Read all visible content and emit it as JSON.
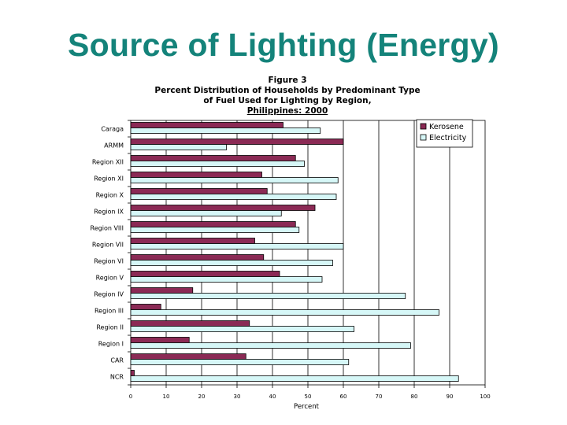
{
  "slide": {
    "title": "Source of Lighting (Energy)"
  },
  "colors": {
    "title": "#14837a",
    "kerosene": "#8b2a55",
    "electricity": "#d6f7f7"
  },
  "chart_data": {
    "type": "bar",
    "orientation": "horizontal",
    "title_lines": [
      "Figure 3",
      "Percent Distribution of Households by Predominant Type",
      "of Fuel Used for Lighting by Region,",
      "Philippines: 2000"
    ],
    "xlabel": "Percent",
    "ylabel": "",
    "xlim": [
      0,
      100
    ],
    "xticks": [
      0,
      10,
      20,
      30,
      40,
      50,
      60,
      70,
      80,
      90,
      100
    ],
    "grid": true,
    "legend_position": "top-right",
    "categories": [
      "Caraga",
      "ARMM",
      "Region XII",
      "Region XI",
      "Region X",
      "Region IX",
      "Region VIII",
      "Region VII",
      "Region VI",
      "Region V",
      "Region IV",
      "Region III",
      "Region II",
      "Region I",
      "CAR",
      "NCR"
    ],
    "series": [
      {
        "name": "Kerosene",
        "values": [
          43,
          60,
          46.5,
          37,
          38.5,
          52,
          46.5,
          35,
          37.5,
          42,
          17.5,
          8.5,
          33.5,
          16.5,
          32.5,
          1
        ]
      },
      {
        "name": "Electricity",
        "values": [
          53.5,
          27,
          49,
          58.5,
          58,
          42.5,
          47.5,
          60,
          57,
          54,
          77.5,
          87,
          63,
          79,
          61.5,
          92.5
        ]
      }
    ]
  }
}
